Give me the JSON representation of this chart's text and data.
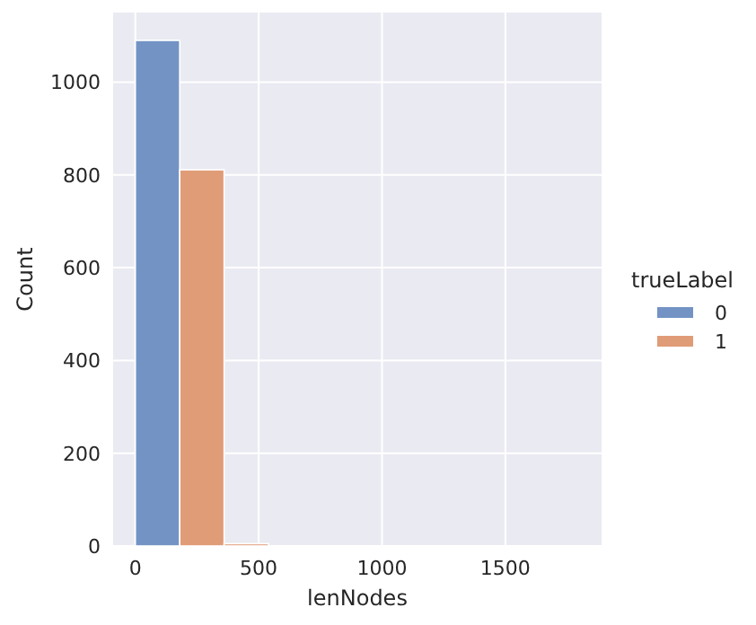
{
  "chart_data": {
    "type": "histogram",
    "xlabel": "lenNodes",
    "ylabel": "Count",
    "legend_title": "trueLabel",
    "bins": [
      0,
      180,
      360,
      540,
      720,
      900,
      1080,
      1260,
      1440,
      1620,
      1800
    ],
    "series": [
      {
        "name": "0",
        "color": "#7393c4",
        "values": [
          1090,
          0,
          null,
          0,
          0,
          0,
          0,
          0,
          0,
          0
        ]
      },
      {
        "name": "1",
        "color": "#e09c77",
        "values": [
          0,
          811,
          5,
          0,
          0,
          0,
          0,
          0,
          0,
          0
        ]
      }
    ],
    "xlim": [
      -90,
      1890
    ],
    "xticks": [
      0,
      500,
      1000,
      1500
    ],
    "ylim": [
      0,
      1150
    ],
    "yticks": [
      0,
      200,
      400,
      600,
      800,
      1000
    ],
    "grid": true,
    "legend": "right"
  }
}
